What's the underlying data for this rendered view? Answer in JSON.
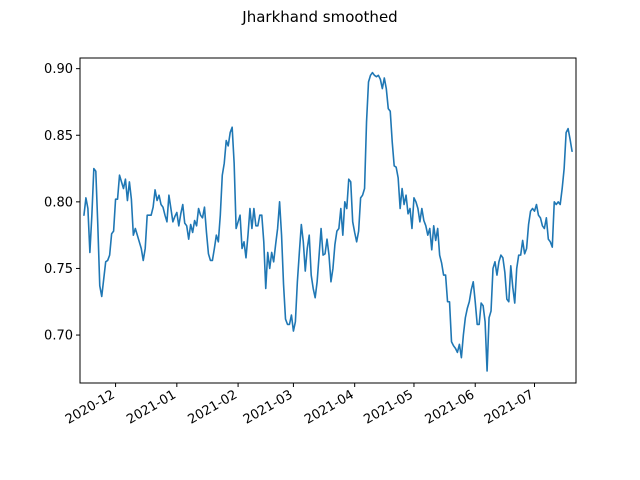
{
  "chart_data": {
    "type": "line",
    "title": "Jharkhand smoothed",
    "xlabel": "",
    "ylabel": "",
    "line_color": "#1f77b4",
    "grid": false,
    "legend": "none",
    "xlim": [
      "2020-11-13",
      "2021-07-22"
    ],
    "ylim": [
      0.664,
      0.908
    ],
    "x_tick_labels": [
      "2020-12",
      "2021-01",
      "2021-02",
      "2021-03",
      "2021-04",
      "2021-05",
      "2021-06",
      "2021-07"
    ],
    "x_tick_dates": [
      "2020-12-01",
      "2021-01-01",
      "2021-02-01",
      "2021-03-01",
      "2021-04-01",
      "2021-05-01",
      "2021-06-01",
      "2021-07-01"
    ],
    "y_ticks": [
      0.7,
      0.75,
      0.8,
      0.85,
      0.9
    ],
    "y_tick_labels": [
      "0.70",
      "0.75",
      "0.80",
      "0.85",
      "0.90"
    ],
    "series": [
      {
        "x": [
          "2020-11-15",
          "2020-11-16",
          "2020-11-17",
          "2020-11-18",
          "2020-11-19",
          "2020-11-20",
          "2020-11-21",
          "2020-11-22",
          "2020-11-23",
          "2020-11-24",
          "2020-11-25",
          "2020-11-26",
          "2020-11-27",
          "2020-11-28",
          "2020-11-29",
          "2020-11-30",
          "2020-12-01",
          "2020-12-02",
          "2020-12-03",
          "2020-12-04",
          "2020-12-05",
          "2020-12-06",
          "2020-12-07",
          "2020-12-08",
          "2020-12-09",
          "2020-12-10",
          "2020-12-11",
          "2020-12-12",
          "2020-12-13",
          "2020-12-14",
          "2020-12-15",
          "2020-12-16",
          "2020-12-17",
          "2020-12-18",
          "2020-12-19",
          "2020-12-20",
          "2020-12-21",
          "2020-12-22",
          "2020-12-23",
          "2020-12-24",
          "2020-12-25",
          "2020-12-26",
          "2020-12-27",
          "2020-12-28",
          "2020-12-29",
          "2020-12-30",
          "2020-12-31",
          "2021-01-01",
          "2021-01-02",
          "2021-01-03",
          "2021-01-04",
          "2021-01-05",
          "2021-01-06",
          "2021-01-07",
          "2021-01-08",
          "2021-01-09",
          "2021-01-10",
          "2021-01-11",
          "2021-01-12",
          "2021-01-13",
          "2021-01-14",
          "2021-01-15",
          "2021-01-16",
          "2021-01-17",
          "2021-01-18",
          "2021-01-19",
          "2021-01-20",
          "2021-01-21",
          "2021-01-22",
          "2021-01-23",
          "2021-01-24",
          "2021-01-25",
          "2021-01-26",
          "2021-01-27",
          "2021-01-28",
          "2021-01-29",
          "2021-01-30",
          "2021-01-31",
          "2021-02-01",
          "2021-02-02",
          "2021-02-03",
          "2021-02-04",
          "2021-02-05",
          "2021-02-06",
          "2021-02-07",
          "2021-02-08",
          "2021-02-09",
          "2021-02-10",
          "2021-02-11",
          "2021-02-12",
          "2021-02-13",
          "2021-02-14",
          "2021-02-15",
          "2021-02-16",
          "2021-02-17",
          "2021-02-18",
          "2021-02-19",
          "2021-02-20",
          "2021-02-21",
          "2021-02-22",
          "2021-02-23",
          "2021-02-24",
          "2021-02-25",
          "2021-02-26",
          "2021-02-27",
          "2021-02-28",
          "2021-03-01",
          "2021-03-02",
          "2021-03-03",
          "2021-03-04",
          "2021-03-05",
          "2021-03-06",
          "2021-03-07",
          "2021-03-08",
          "2021-03-09",
          "2021-03-10",
          "2021-03-11",
          "2021-03-12",
          "2021-03-13",
          "2021-03-14",
          "2021-03-15",
          "2021-03-16",
          "2021-03-17",
          "2021-03-18",
          "2021-03-19",
          "2021-03-20",
          "2021-03-21",
          "2021-03-22",
          "2021-03-23",
          "2021-03-24",
          "2021-03-25",
          "2021-03-26",
          "2021-03-27",
          "2021-03-28",
          "2021-03-29",
          "2021-03-30",
          "2021-03-31",
          "2021-04-01",
          "2021-04-02",
          "2021-04-03",
          "2021-04-04",
          "2021-04-05",
          "2021-04-06",
          "2021-04-07",
          "2021-04-08",
          "2021-04-09",
          "2021-04-10",
          "2021-04-11",
          "2021-04-12",
          "2021-04-13",
          "2021-04-14",
          "2021-04-15",
          "2021-04-16",
          "2021-04-17",
          "2021-04-18",
          "2021-04-19",
          "2021-04-20",
          "2021-04-21",
          "2021-04-22",
          "2021-04-23",
          "2021-04-24",
          "2021-04-25",
          "2021-04-26",
          "2021-04-27",
          "2021-04-28",
          "2021-04-29",
          "2021-04-30",
          "2021-05-01",
          "2021-05-02",
          "2021-05-03",
          "2021-05-04",
          "2021-05-05",
          "2021-05-06",
          "2021-05-07",
          "2021-05-08",
          "2021-05-09",
          "2021-05-10",
          "2021-05-11",
          "2021-05-12",
          "2021-05-13",
          "2021-05-14",
          "2021-05-15",
          "2021-05-16",
          "2021-05-17",
          "2021-05-18",
          "2021-05-19",
          "2021-05-20",
          "2021-05-21",
          "2021-05-22",
          "2021-05-23",
          "2021-05-24",
          "2021-05-25",
          "2021-05-26",
          "2021-05-27",
          "2021-05-28",
          "2021-05-29",
          "2021-05-30",
          "2021-05-31",
          "2021-06-01",
          "2021-06-02",
          "2021-06-03",
          "2021-06-04",
          "2021-06-05",
          "2021-06-06",
          "2021-06-07",
          "2021-06-08",
          "2021-06-09",
          "2021-06-10",
          "2021-06-11",
          "2021-06-12",
          "2021-06-13",
          "2021-06-14",
          "2021-06-15",
          "2021-06-16",
          "2021-06-17",
          "2021-06-18",
          "2021-06-19",
          "2021-06-20",
          "2021-06-21",
          "2021-06-22",
          "2021-06-23",
          "2021-06-24",
          "2021-06-25",
          "2021-06-26",
          "2021-06-27",
          "2021-06-28",
          "2021-06-29",
          "2021-06-30",
          "2021-07-01",
          "2021-07-02",
          "2021-07-03",
          "2021-07-04",
          "2021-07-05",
          "2021-07-06",
          "2021-07-07",
          "2021-07-08",
          "2021-07-09",
          "2021-07-10",
          "2021-07-11",
          "2021-07-12",
          "2021-07-13",
          "2021-07-14",
          "2021-07-15",
          "2021-07-16",
          "2021-07-17",
          "2021-07-18",
          "2021-07-19",
          "2021-07-20"
        ],
        "values": [
          0.79,
          0.803,
          0.795,
          0.762,
          0.79,
          0.825,
          0.823,
          0.783,
          0.737,
          0.729,
          0.742,
          0.755,
          0.756,
          0.76,
          0.776,
          0.778,
          0.802,
          0.802,
          0.82,
          0.815,
          0.81,
          0.817,
          0.801,
          0.815,
          0.802,
          0.775,
          0.78,
          0.775,
          0.77,
          0.765,
          0.756,
          0.765,
          0.79,
          0.79,
          0.79,
          0.796,
          0.809,
          0.801,
          0.805,
          0.798,
          0.796,
          0.79,
          0.785,
          0.805,
          0.795,
          0.785,
          0.789,
          0.792,
          0.782,
          0.791,
          0.798,
          0.784,
          0.782,
          0.772,
          0.783,
          0.777,
          0.786,
          0.782,
          0.795,
          0.79,
          0.788,
          0.796,
          0.777,
          0.761,
          0.756,
          0.756,
          0.765,
          0.775,
          0.77,
          0.79,
          0.82,
          0.829,
          0.846,
          0.842,
          0.852,
          0.856,
          0.829,
          0.78,
          0.785,
          0.79,
          0.765,
          0.77,
          0.758,
          0.775,
          0.795,
          0.78,
          0.795,
          0.782,
          0.782,
          0.79,
          0.79,
          0.77,
          0.735,
          0.762,
          0.75,
          0.762,
          0.755,
          0.768,
          0.78,
          0.8,
          0.775,
          0.738,
          0.712,
          0.708,
          0.708,
          0.715,
          0.703,
          0.71,
          0.74,
          0.762,
          0.783,
          0.77,
          0.748,
          0.765,
          0.775,
          0.745,
          0.735,
          0.728,
          0.74,
          0.76,
          0.78,
          0.76,
          0.761,
          0.772,
          0.76,
          0.74,
          0.75,
          0.768,
          0.778,
          0.78,
          0.795,
          0.775,
          0.8,
          0.795,
          0.817,
          0.815,
          0.785,
          0.777,
          0.77,
          0.778,
          0.803,
          0.805,
          0.81,
          0.86,
          0.89,
          0.895,
          0.897,
          0.895,
          0.894,
          0.895,
          0.892,
          0.885,
          0.893,
          0.885,
          0.87,
          0.868,
          0.845,
          0.827,
          0.826,
          0.818,
          0.795,
          0.81,
          0.798,
          0.805,
          0.791,
          0.795,
          0.78,
          0.803,
          0.8,
          0.795,
          0.785,
          0.795,
          0.786,
          0.782,
          0.775,
          0.78,
          0.764,
          0.782,
          0.771,
          0.78,
          0.76,
          0.754,
          0.745,
          0.745,
          0.725,
          0.725,
          0.695,
          0.692,
          0.69,
          0.687,
          0.693,
          0.683,
          0.7,
          0.713,
          0.72,
          0.725,
          0.734,
          0.74,
          0.725,
          0.708,
          0.708,
          0.724,
          0.722,
          0.71,
          0.673,
          0.713,
          0.718,
          0.75,
          0.755,
          0.745,
          0.755,
          0.76,
          0.758,
          0.747,
          0.727,
          0.725,
          0.752,
          0.736,
          0.724,
          0.75,
          0.76,
          0.76,
          0.771,
          0.761,
          0.765,
          0.783,
          0.793,
          0.795,
          0.793,
          0.798,
          0.79,
          0.788,
          0.782,
          0.78,
          0.788,
          0.772,
          0.77,
          0.766,
          0.8,
          0.798,
          0.8,
          0.798,
          0.81,
          0.825,
          0.852,
          0.855,
          0.847,
          0.838
        ]
      }
    ]
  }
}
